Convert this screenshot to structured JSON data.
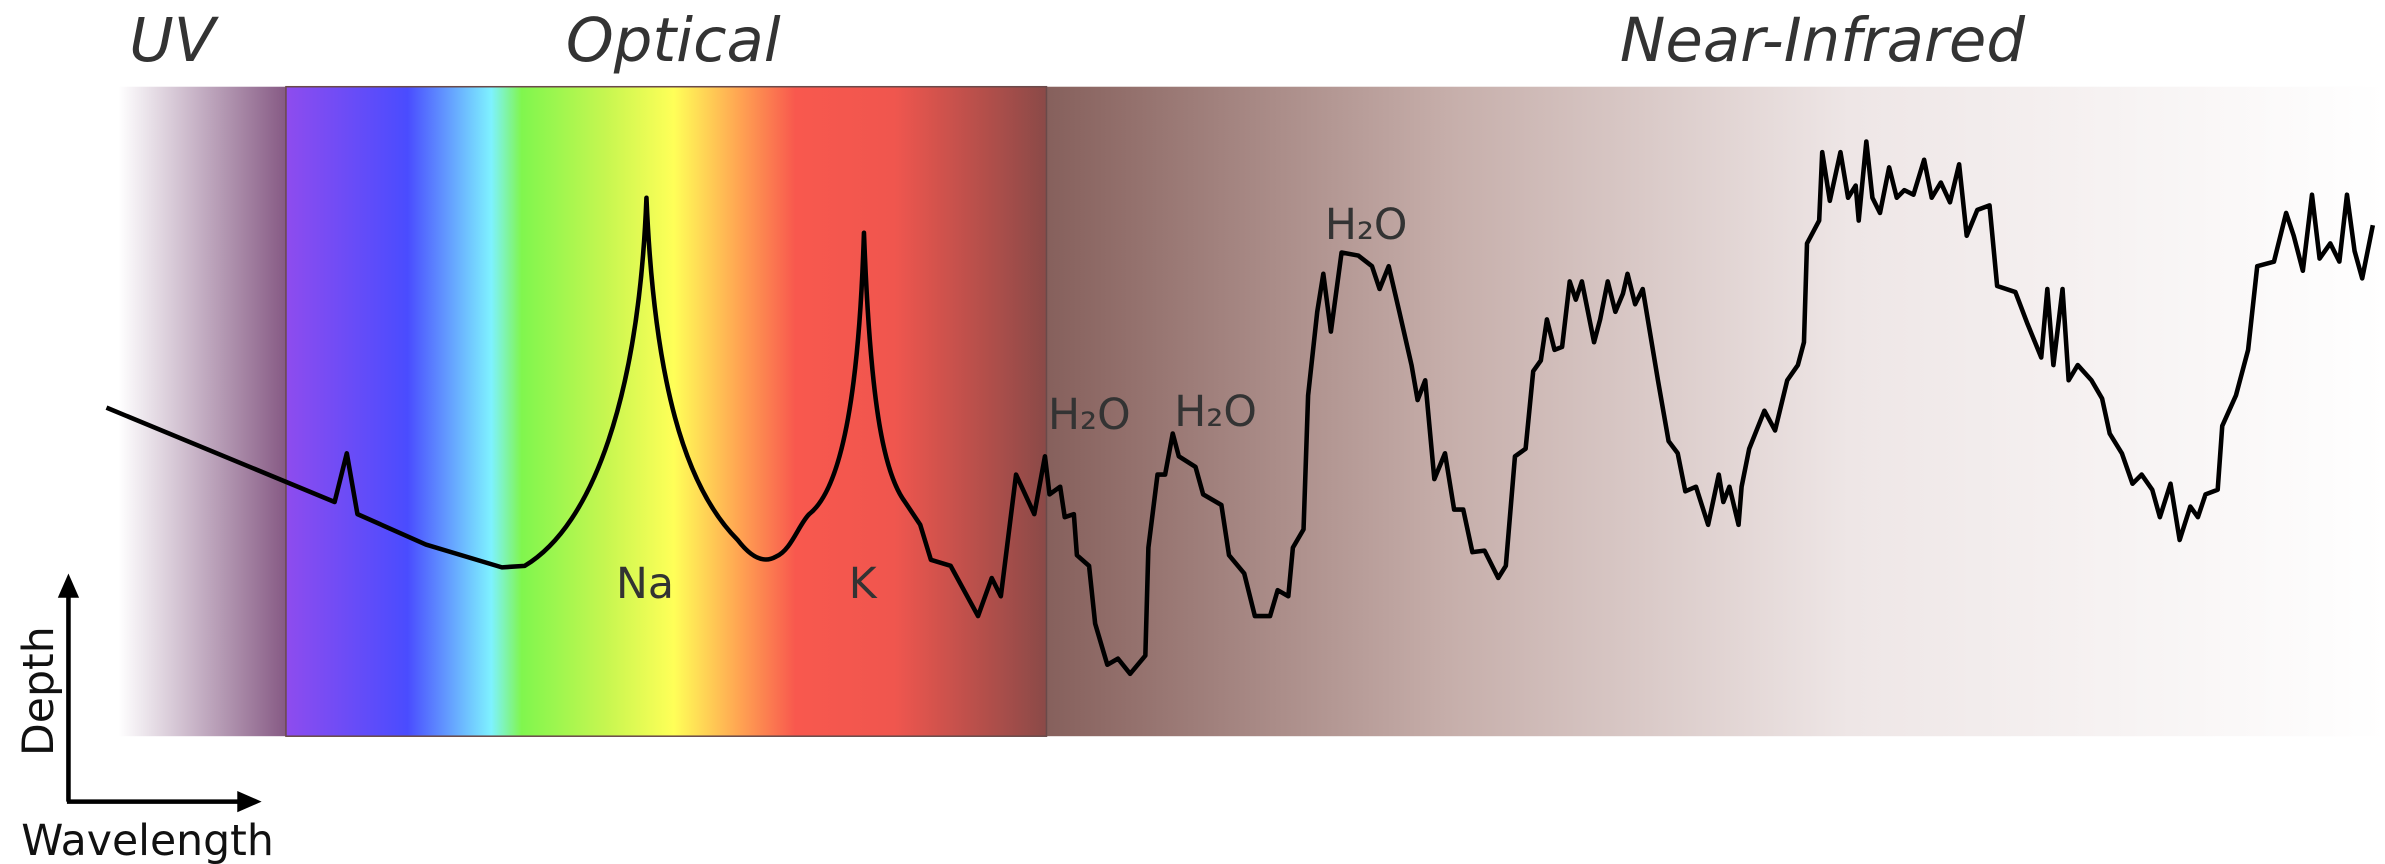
{
  "regions": [
    {
      "label": "UV"
    },
    {
      "label": "Optical"
    },
    {
      "label": "Near-Infrared"
    }
  ],
  "features": [
    {
      "label": "Na"
    },
    {
      "label": "K"
    },
    {
      "label": "H₂O"
    },
    {
      "label": "H₂O"
    },
    {
      "label": "H₂O"
    }
  ],
  "axes": {
    "y": "Depth",
    "x": "Wavelength"
  }
}
